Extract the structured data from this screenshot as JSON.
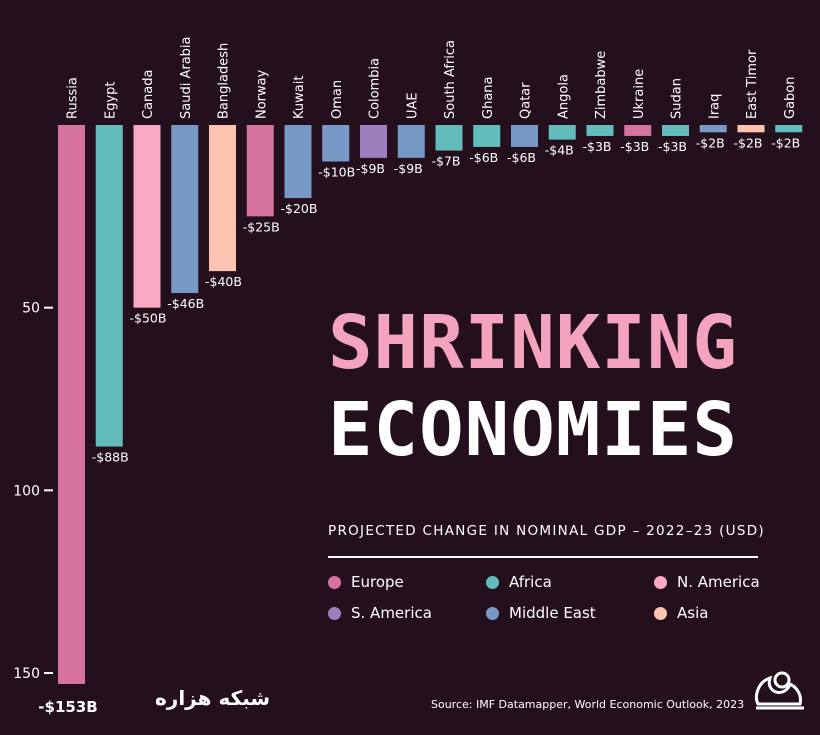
{
  "title_line1": "SHRINKING",
  "title_line2": "ECONOMIES",
  "subtitle": "PROJECTED CHANGE IN NOMINAL GDP – 2022–23 (USD)",
  "source": "Source: IMF Datamapper, World Economic Outlook, 2023",
  "brand_text": "شبکه هزاره",
  "brand_icon": "moon-icon",
  "colors": {
    "Europe": "#d5739e",
    "Africa": "#62bcbc",
    "N. America": "#f9a8c3",
    "S. America": "#9d7fbd",
    "Middle East": "#7899c5",
    "Asia": "#fbc3b0",
    "background": "#24101c"
  },
  "legend": [
    {
      "label": "Europe",
      "region": "Europe"
    },
    {
      "label": "Africa",
      "region": "Africa"
    },
    {
      "label": "N. America",
      "region": "N. America"
    },
    {
      "label": "S. America",
      "region": "S. America"
    },
    {
      "label": "Middle East",
      "region": "Middle East"
    },
    {
      "label": "Asia",
      "region": "Asia"
    }
  ],
  "chart_data": {
    "type": "bar",
    "orientation": "vertical-down",
    "categories": [
      "Russia",
      "Egypt",
      "Canada",
      "Saudi Arabia",
      "Bangladesh",
      "Norway",
      "Kuwait",
      "Oman",
      "Colombia",
      "UAE",
      "South Africa",
      "Ghana",
      "Qatar",
      "Angola",
      "Zimbabwe",
      "Ukraine",
      "Sudan",
      "Iraq",
      "East Timor",
      "Gabon"
    ],
    "values": [
      -153,
      -88,
      -50,
      -46,
      -40,
      -25,
      -20,
      -10,
      -9,
      -9,
      -7,
      -6,
      -6,
      -4,
      -3,
      -3,
      -3,
      -2,
      -2,
      -2
    ],
    "value_labels": [
      "-$153B",
      "-$88B",
      "-$50B",
      "-$46B",
      "-$40B",
      "-$25B",
      "-$20B",
      "-$10B",
      "-$9B",
      "-$9B",
      "-$7B",
      "-$6B",
      "-$6B",
      "-$4B",
      "-$3B",
      "-$3B",
      "-$3B",
      "-$2B",
      "-$2B",
      "-$2B"
    ],
    "regions": [
      "Europe",
      "Africa",
      "N. America",
      "Middle East",
      "Asia",
      "Europe",
      "Middle East",
      "Middle East",
      "S. America",
      "Middle East",
      "Africa",
      "Africa",
      "Middle East",
      "Africa",
      "Africa",
      "Europe",
      "Africa",
      "Middle East",
      "Asia",
      "Africa"
    ],
    "yticks": [
      50,
      100,
      150
    ],
    "ylim": [
      0,
      153
    ],
    "grid": false,
    "legend_position": "bottom-right"
  }
}
